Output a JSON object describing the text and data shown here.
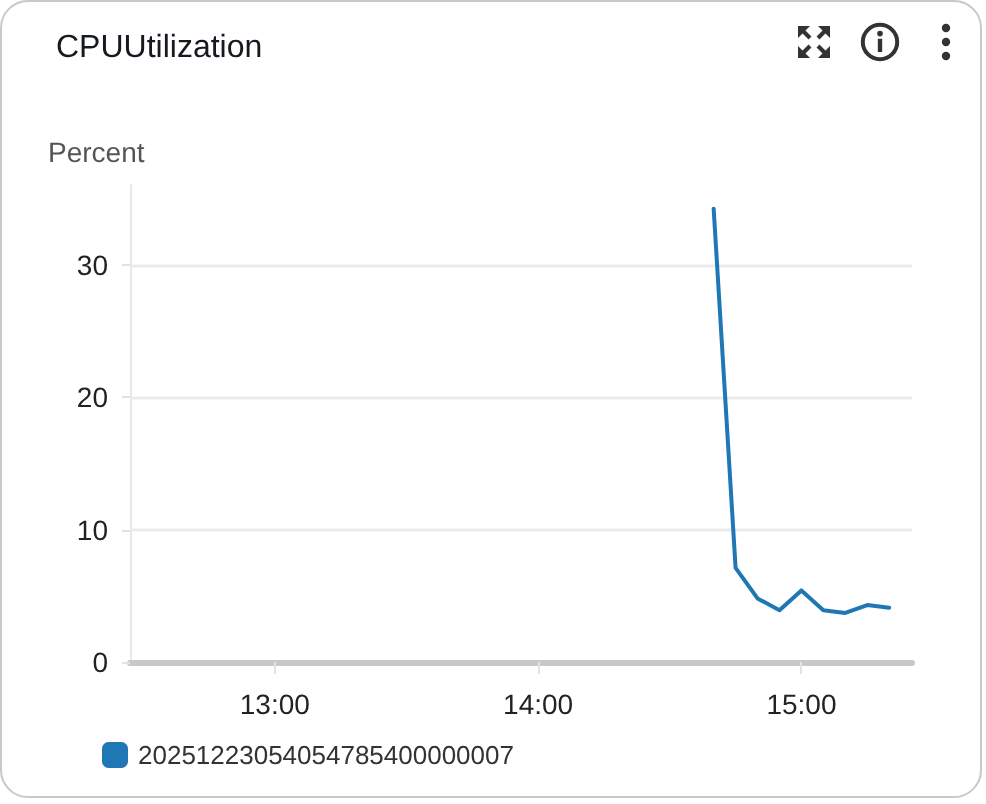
{
  "chart_data": {
    "type": "line",
    "title": "CPUUtilization",
    "ylabel": "Percent",
    "x": [
      14.6667,
      14.75,
      14.8333,
      14.9167,
      15,
      15.0833,
      15.1667,
      15.25,
      15.3333
    ],
    "series": [
      {
        "name": "20251223054054785400000007",
        "color": "#1f77b4",
        "values": [
          34.2,
          7.1,
          4.8,
          3.9,
          5.4,
          3.9,
          3.7,
          4.3,
          4.1
        ]
      }
    ],
    "xlim": [
      12.45,
      15.42
    ],
    "xticks": [
      {
        "value": 13,
        "label": "13:00"
      },
      {
        "value": 14,
        "label": "14:00"
      },
      {
        "value": 15,
        "label": "15:00"
      }
    ],
    "ylim": [
      0,
      36
    ],
    "yticks": [
      0,
      10,
      20,
      30
    ],
    "grid": "y",
    "legend": "bottom left"
  }
}
